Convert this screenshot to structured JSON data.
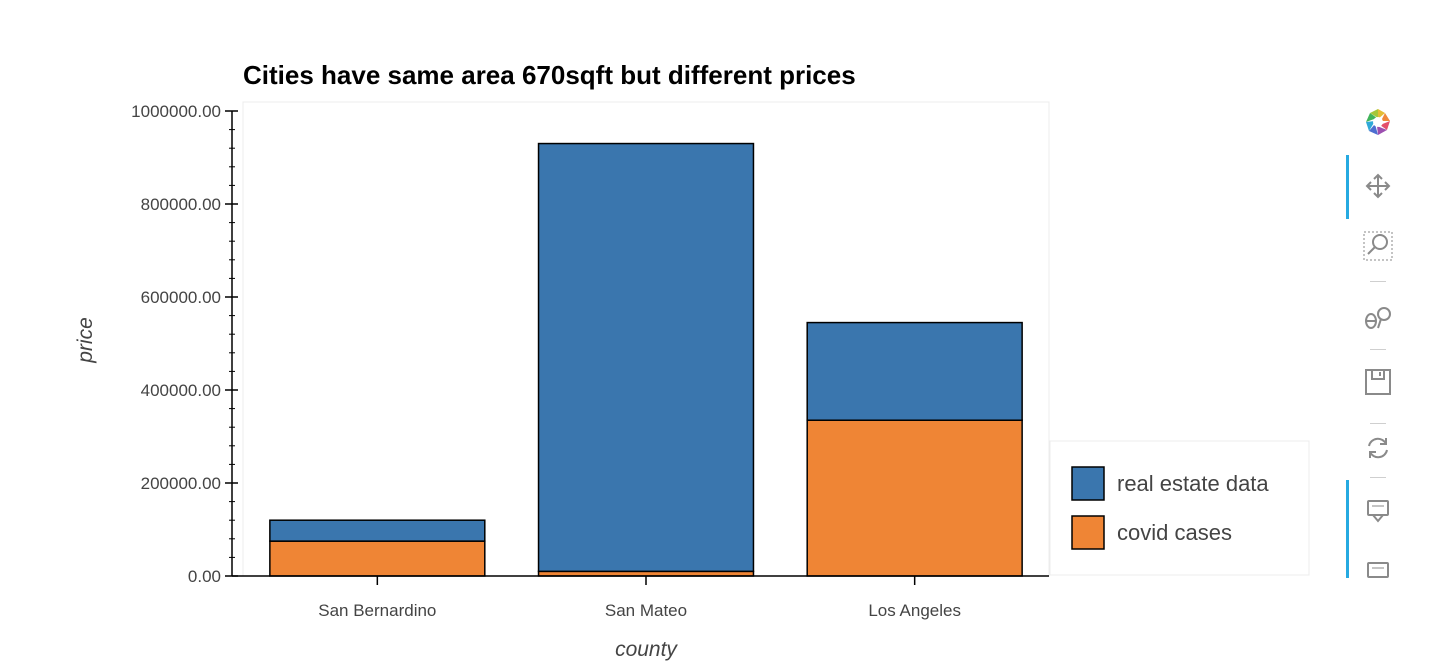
{
  "chart_data": {
    "type": "bar",
    "stacked": true,
    "title": "Cities  have same area 670sqft but different prices",
    "xlabel": "county",
    "ylabel": "price",
    "categories": [
      "San Bernardino",
      "San Mateo",
      "Los Angeles"
    ],
    "ylim": [
      0,
      1000000
    ],
    "yticks": [
      "0.00",
      "200000.00",
      "400000.00",
      "600000.00",
      "800000.00",
      "1000000.00"
    ],
    "series": [
      {
        "name": "covid cases",
        "color": "#ef8535",
        "values": [
          75000,
          10000,
          335000
        ]
      },
      {
        "name": "real estate data",
        "color": "#3a76ae",
        "values": [
          45000,
          920000,
          210000
        ]
      }
    ],
    "legend": {
      "placement": "bottom-right outside",
      "entries": [
        "real estate data",
        "covid cases"
      ]
    },
    "grid": false
  },
  "toolbar": {
    "tools": [
      "bokeh-logo-icon",
      "pan-icon",
      "box-zoom-icon",
      "wheel-zoom-icon",
      "save-icon",
      "reset-icon",
      "hover-icon",
      "hover-icon-2"
    ]
  }
}
